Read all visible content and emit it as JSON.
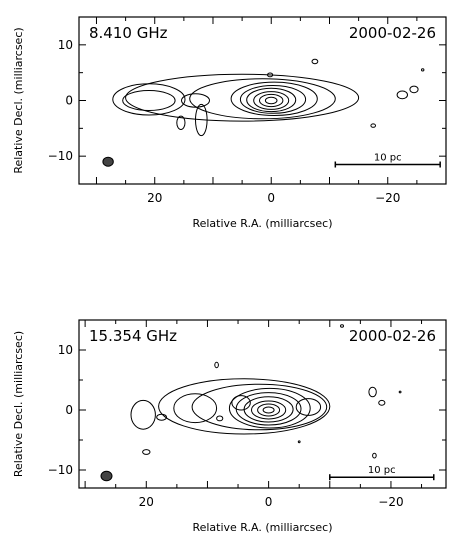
{
  "chart_data": [
    {
      "type": "contour",
      "frequency_label": "8.410 GHz",
      "date_label": "2000-02-26",
      "xlabel": "Relative R.A. (milliarcsec)",
      "ylabel": "Relative Decl. (milliarcsec)",
      "xlim": [
        33,
        -30
      ],
      "ylim": [
        -15,
        15
      ],
      "x_ticks": [
        20,
        0,
        -20
      ],
      "x_tick_labels": [
        "20",
        "0",
        "−20"
      ],
      "y_ticks": [
        10,
        0,
        -10
      ],
      "y_tick_labels": [
        "10",
        "0",
        "−10"
      ],
      "scale_bar": {
        "label": "10 pc",
        "x_from": -11,
        "x_to": -29,
        "y": -11.5
      },
      "beam": {
        "x": 28,
        "y": -11,
        "rx": 0.9,
        "ry": 0.8
      },
      "contours": [
        {
          "cx": 0,
          "cy": 0,
          "rx": 1.0,
          "ry": 0.6
        },
        {
          "cx": 0,
          "cy": 0,
          "rx": 2.0,
          "ry": 1.1
        },
        {
          "cx": 0,
          "cy": 0,
          "rx": 3.0,
          "ry": 1.6
        },
        {
          "cx": 0,
          "cy": 0.1,
          "rx": 4.2,
          "ry": 2.1
        },
        {
          "cx": -0.3,
          "cy": 0.2,
          "rx": 5.6,
          "ry": 2.5
        },
        {
          "cx": -0.5,
          "cy": 0.3,
          "rx": 7.4,
          "ry": 3.0
        },
        {
          "cx": 1.5,
          "cy": 0.3,
          "rx": 12.5,
          "ry": 3.6
        },
        {
          "cx": 5,
          "cy": 0.5,
          "rx": 20,
          "ry": 4.2
        },
        {
          "cx": 21,
          "cy": 0,
          "rx": 4.5,
          "ry": 1.8
        },
        {
          "cx": 21,
          "cy": 0.2,
          "rx": 6.2,
          "ry": 2.8
        },
        {
          "cx": 13,
          "cy": 0,
          "rx": 2.4,
          "ry": 1.2
        },
        {
          "cx": 12,
          "cy": -3.5,
          "rx": 1.0,
          "ry": 2.8
        },
        {
          "cx": 15.5,
          "cy": -4,
          "rx": 0.7,
          "ry": 1.2
        },
        {
          "cx": 0.2,
          "cy": 4.6,
          "rx": 0.45,
          "ry": 0.35
        },
        {
          "cx": -22.5,
          "cy": 1.0,
          "rx": 0.9,
          "ry": 0.7
        },
        {
          "cx": -24.5,
          "cy": 2.0,
          "rx": 0.7,
          "ry": 0.6
        },
        {
          "cx": -7.5,
          "cy": 7.0,
          "rx": 0.5,
          "ry": 0.4
        },
        {
          "cx": -17.5,
          "cy": -4.5,
          "rx": 0.4,
          "ry": 0.3
        },
        {
          "cx": -26,
          "cy": 5.5,
          "rx": 0.2,
          "ry": 0.2
        }
      ]
    },
    {
      "type": "contour",
      "frequency_label": "15.354 GHz",
      "date_label": "2000-02-26",
      "xlabel": "Relative R.A. (milliarcsec)",
      "ylabel": "Relative Decl. (milliarcsec)",
      "xlim": [
        31,
        -29
      ],
      "ylim": [
        -13,
        15
      ],
      "x_ticks": [
        20,
        0,
        -20
      ],
      "x_tick_labels": [
        "20",
        "0",
        "−20"
      ],
      "y_ticks": [
        10,
        0,
        -10
      ],
      "y_tick_labels": [
        "10",
        "0",
        "−10"
      ],
      "scale_bar": {
        "label": "10 pc",
        "x_from": -10,
        "x_to": -27,
        "y": -11.2
      },
      "beam": {
        "x": 26.5,
        "y": -11,
        "rx": 0.9,
        "ry": 0.8
      },
      "contours": [
        {
          "cx": 0,
          "cy": 0,
          "rx": 0.9,
          "ry": 0.5
        },
        {
          "cx": 0,
          "cy": 0,
          "rx": 1.8,
          "ry": 1.0
        },
        {
          "cx": 0,
          "cy": 0,
          "rx": 2.8,
          "ry": 1.5
        },
        {
          "cx": 0,
          "cy": 0.1,
          "rx": 4.0,
          "ry": 2.1
        },
        {
          "cx": 0,
          "cy": 0.2,
          "rx": 5.3,
          "ry": 2.7
        },
        {
          "cx": -0.2,
          "cy": 0.3,
          "rx": 6.6,
          "ry": 3.3
        },
        {
          "cx": 1.5,
          "cy": 0.5,
          "rx": 11,
          "ry": 3.8
        },
        {
          "cx": 4,
          "cy": 0.6,
          "rx": 14,
          "ry": 4.6
        },
        {
          "cx": 12,
          "cy": 0.3,
          "rx": 3.5,
          "ry": 2.4
        },
        {
          "cx": 4.5,
          "cy": 1.2,
          "rx": 1.5,
          "ry": 1.2
        },
        {
          "cx": -6.5,
          "cy": 0.5,
          "rx": 2.0,
          "ry": 1.4
        },
        {
          "cx": 20.5,
          "cy": -0.8,
          "rx": 2.0,
          "ry": 2.4
        },
        {
          "cx": 17.5,
          "cy": -1.2,
          "rx": 0.8,
          "ry": 0.5
        },
        {
          "cx": 8,
          "cy": -1.4,
          "rx": 0.5,
          "ry": 0.4
        },
        {
          "cx": 8.5,
          "cy": 7.5,
          "rx": 0.3,
          "ry": 0.45
        },
        {
          "cx": -17,
          "cy": 3.0,
          "rx": 0.6,
          "ry": 0.8
        },
        {
          "cx": -18.5,
          "cy": 1.2,
          "rx": 0.5,
          "ry": 0.4
        },
        {
          "cx": 20,
          "cy": -7.0,
          "rx": 0.6,
          "ry": 0.4
        },
        {
          "cx": -17.3,
          "cy": -7.6,
          "rx": 0.3,
          "ry": 0.4
        },
        {
          "cx": -5,
          "cy": -5.3,
          "rx": 0.15,
          "ry": 0.15
        },
        {
          "cx": -21.5,
          "cy": 3.0,
          "rx": 0.15,
          "ry": 0.15
        },
        {
          "cx": -12,
          "cy": 14.0,
          "rx": 0.25,
          "ry": 0.2
        }
      ]
    }
  ]
}
